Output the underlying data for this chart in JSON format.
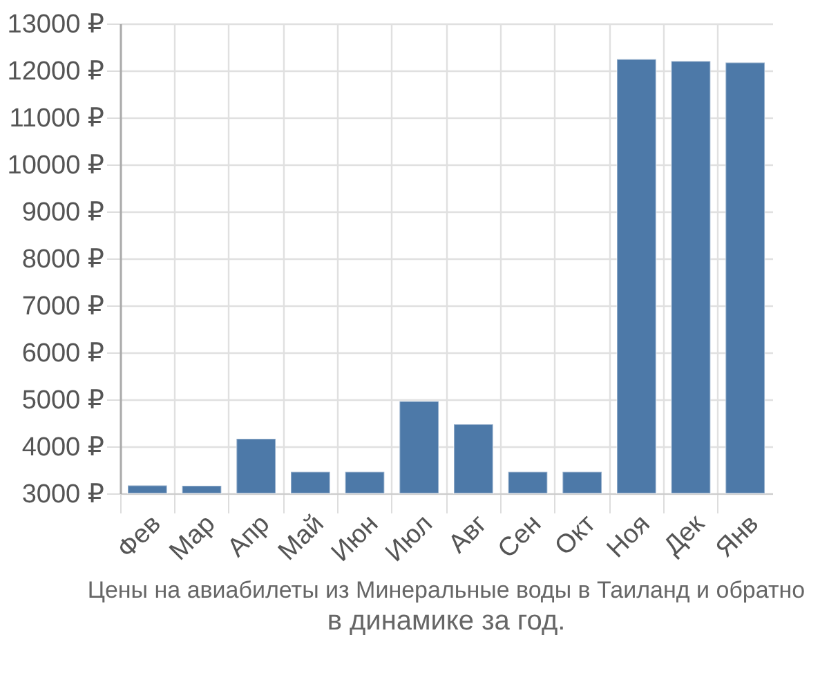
{
  "chart_data": {
    "type": "bar",
    "title": "Цены на авиабилеты из Минеральные воды в Таиланд и обратно",
    "subtitle": "в динамике за год.",
    "categories": [
      "Фев",
      "Мар",
      "Апр",
      "Май",
      "Июн",
      "Июл",
      "Авг",
      "Сен",
      "Окт",
      "Ноя",
      "Дек",
      "Янв"
    ],
    "values": [
      3170,
      3160,
      4160,
      3460,
      3460,
      4960,
      4470,
      3460,
      3460,
      12240,
      12200,
      12170
    ],
    "color": "#4d79a8",
    "ylim": [
      3000,
      13000
    ],
    "yticks": [
      {
        "value": 3000,
        "label": "3000 ₽"
      },
      {
        "value": 4000,
        "label": "4000 ₽"
      },
      {
        "value": 5000,
        "label": "5000 ₽"
      },
      {
        "value": 6000,
        "label": "6000 ₽"
      },
      {
        "value": 7000,
        "label": "7000 ₽"
      },
      {
        "value": 8000,
        "label": "8000 ₽"
      },
      {
        "value": 9000,
        "label": "9000 ₽"
      },
      {
        "value": 10000,
        "label": "10000 ₽"
      },
      {
        "value": 11000,
        "label": "11000 ₽"
      },
      {
        "value": 12000,
        "label": "12000 ₽"
      },
      {
        "value": 13000,
        "label": "13000 ₽"
      }
    ],
    "grid": true
  }
}
